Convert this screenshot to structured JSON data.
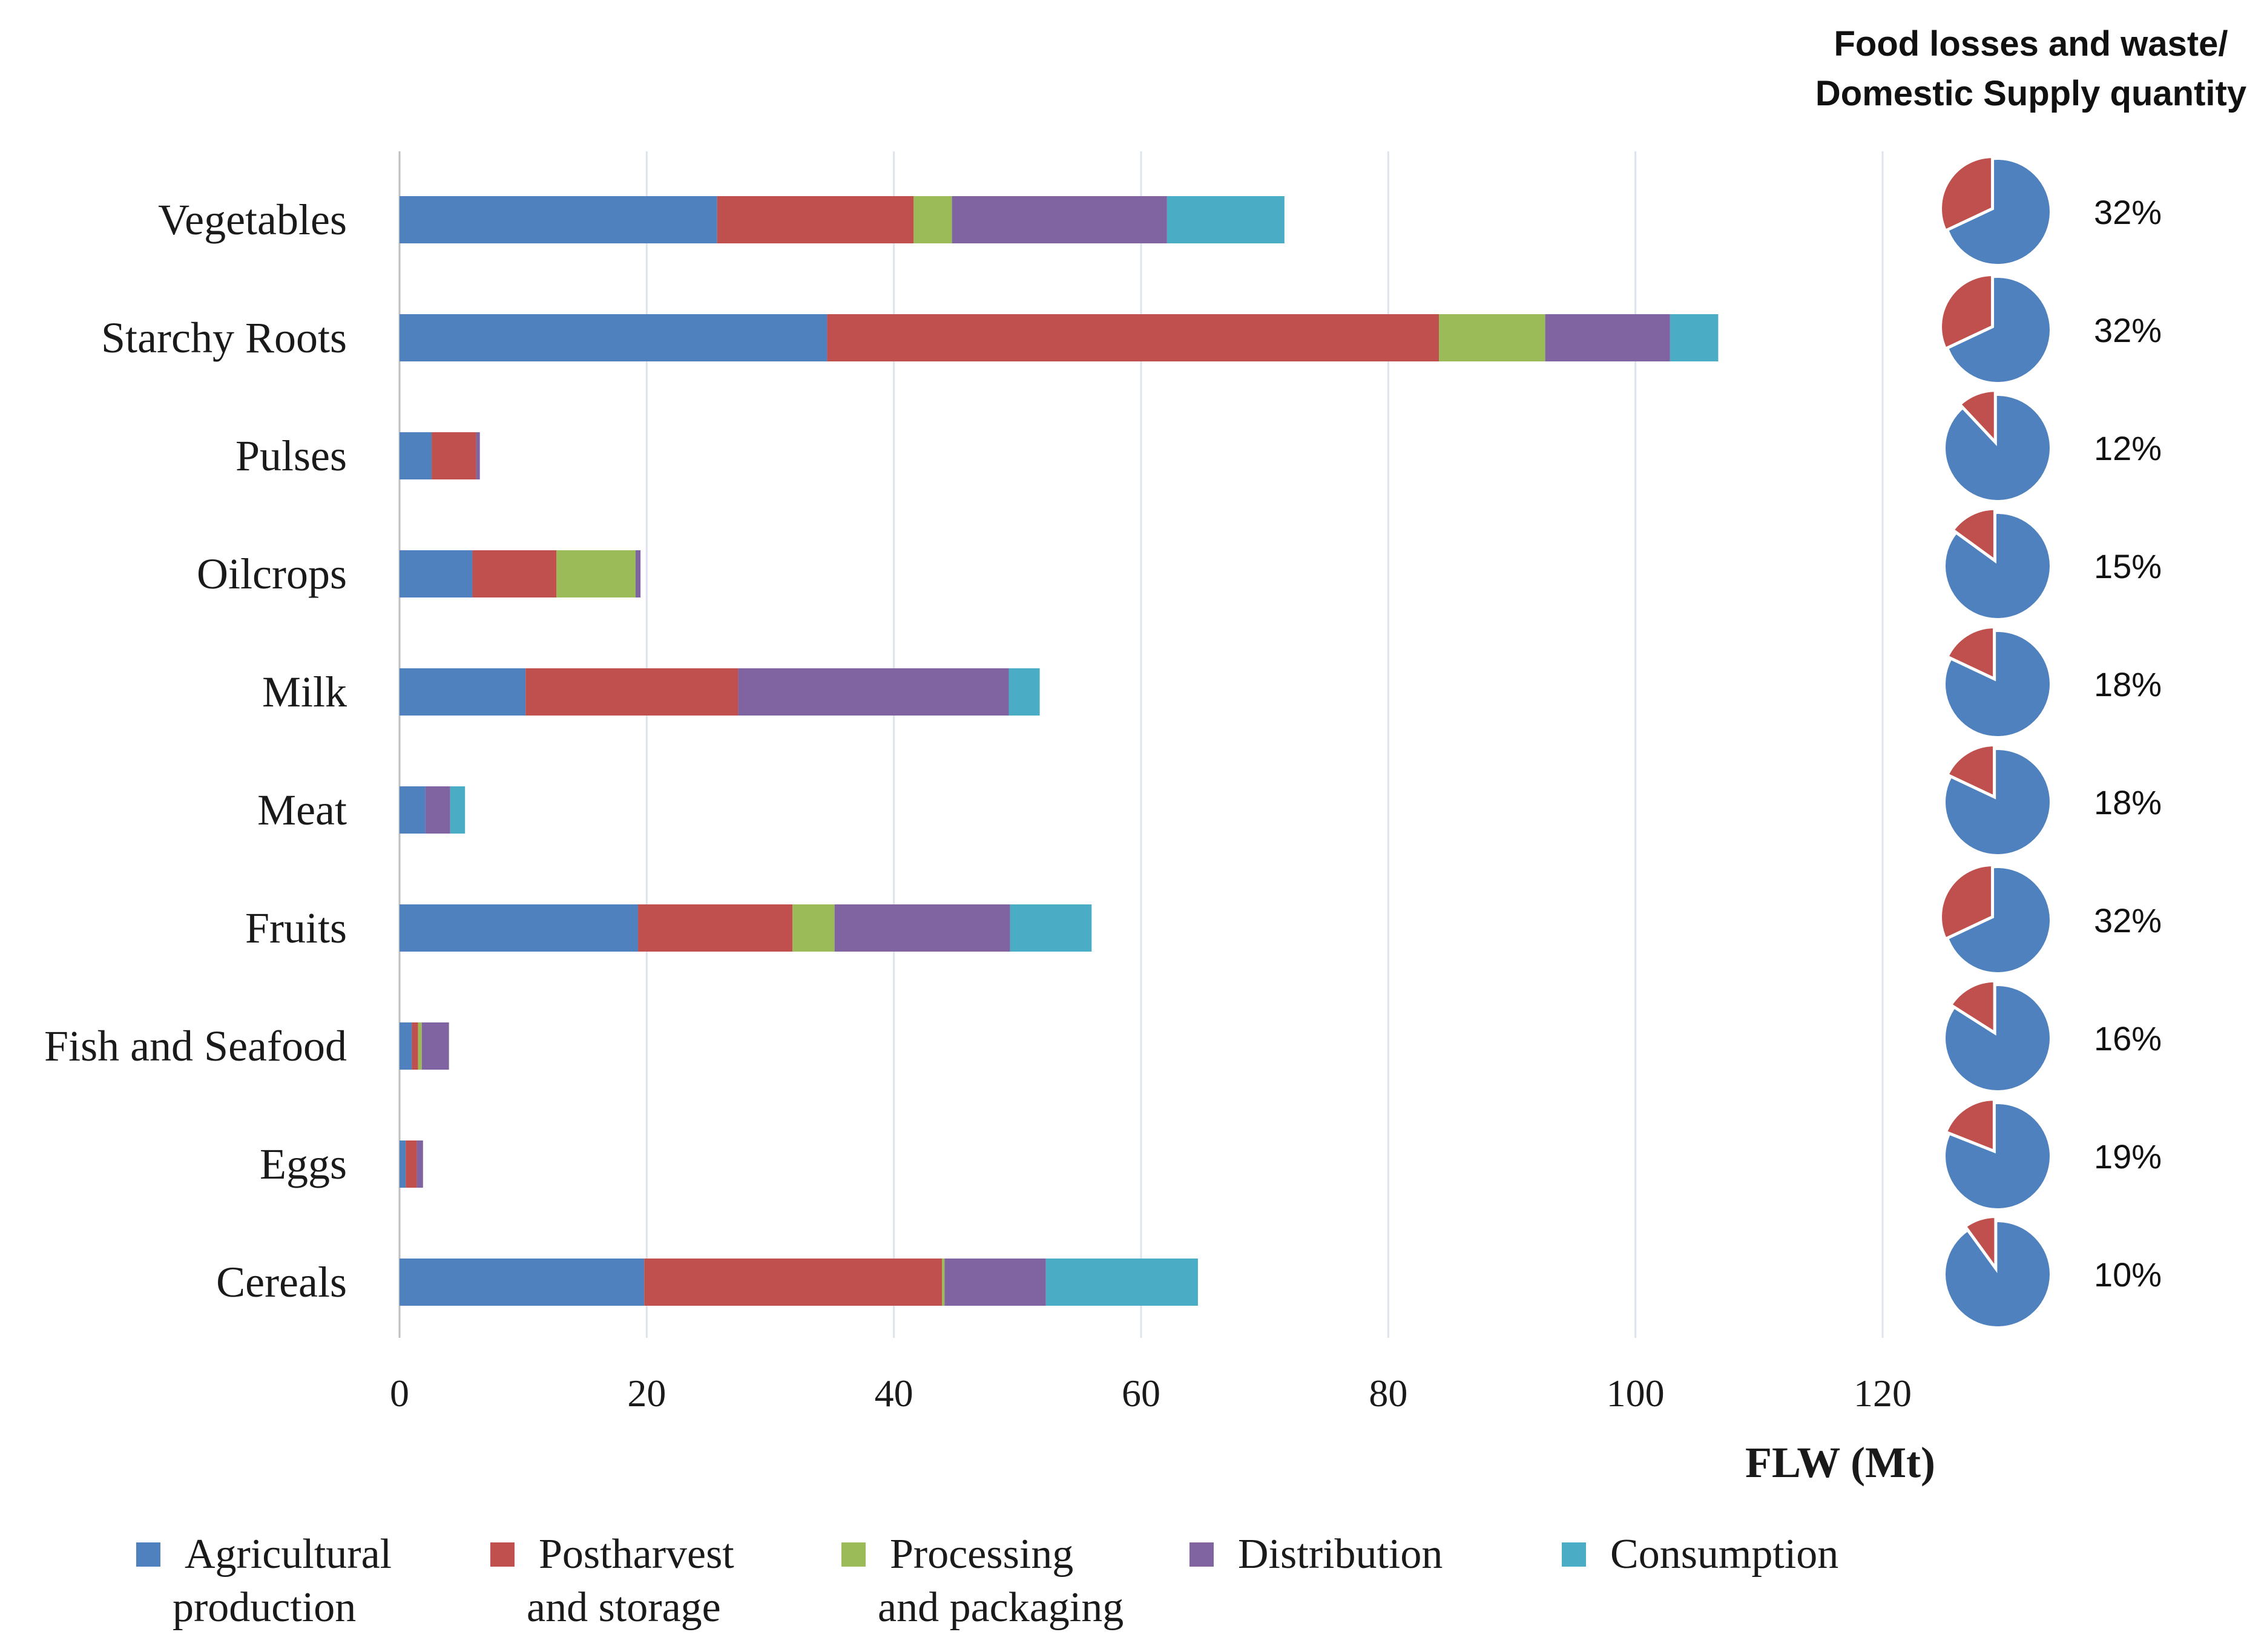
{
  "chart_data": {
    "type": "bar",
    "orientation": "horizontal",
    "stacked": true,
    "title": "",
    "xlabel": "FLW (Mt)",
    "ylabel": "",
    "xlim": [
      0,
      120
    ],
    "x_ticks": [
      "0",
      "20",
      "40",
      "60",
      "80",
      "100",
      "120"
    ],
    "grid": true,
    "legend_position": "bottom",
    "categories": [
      "Vegetables",
      "Starchy Roots",
      "Pulses",
      "Oilcrops",
      "Milk",
      "Meat",
      "Fruits",
      "Fish and Seafood",
      "Eggs",
      "Cereals"
    ],
    "series": [
      {
        "name": "Agricultural production",
        "legend_lines": [
          "Agricultural",
          "production"
        ],
        "color": "#4e81bd",
        "values": [
          25.7,
          34.6,
          2.6,
          5.9,
          10.2,
          2.1,
          19.3,
          1.0,
          0.5,
          19.8
        ]
      },
      {
        "name": "Postharvest and storage",
        "legend_lines": [
          "Postharvest",
          "and storage"
        ],
        "color": "#c0504d",
        "values": [
          15.9,
          49.5,
          3.6,
          6.8,
          17.2,
          0.0,
          12.5,
          0.5,
          0.9,
          24.1
        ]
      },
      {
        "name": "Processing and packaging",
        "legend_lines": [
          "Processing",
          "and packaging"
        ],
        "color": "#9bbb59",
        "values": [
          3.1,
          8.6,
          0.0,
          6.4,
          0.0,
          0.0,
          3.4,
          0.3,
          0.0,
          0.2
        ]
      },
      {
        "name": "Distribution",
        "legend_lines": [
          "Distribution"
        ],
        "color": "#8064a2",
        "values": [
          17.4,
          10.1,
          0.3,
          0.4,
          21.9,
          2.0,
          14.2,
          2.2,
          0.5,
          8.2
        ]
      },
      {
        "name": "Consumption",
        "legend_lines": [
          "Consumption"
        ],
        "color": "#4bacc6",
        "values": [
          9.5,
          3.9,
          0.0,
          0.0,
          2.5,
          1.2,
          6.6,
          0.0,
          0.0,
          12.3
        ]
      }
    ],
    "pies": {
      "title_lines": [
        "Food losses and waste/",
        "Domestic Supply quantity"
      ],
      "loss_color": "#c0504d",
      "rest_color": "#4e81bd",
      "labels": [
        "32%",
        "32%",
        "12%",
        "15%",
        "18%",
        "18%",
        "32%",
        "16%",
        "19%",
        "10%"
      ],
      "values": [
        32,
        32,
        12,
        15,
        18,
        18,
        32,
        16,
        19,
        10
      ]
    }
  }
}
